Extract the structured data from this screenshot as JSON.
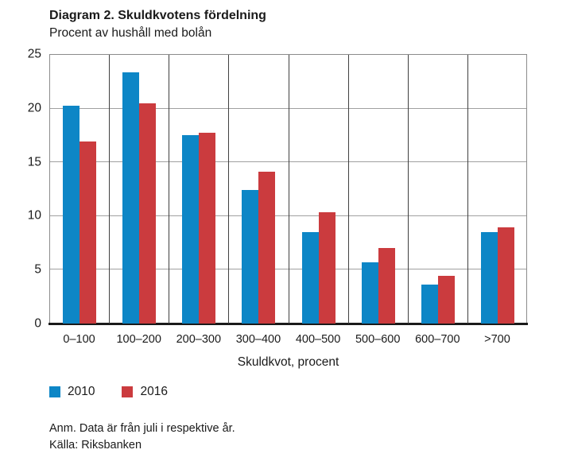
{
  "header": {
    "title": "Diagram 2. Skuldkvotens fördelning",
    "subtitle": "Procent av hushåll med bolån"
  },
  "chart_data": {
    "type": "bar",
    "categories": [
      "0–100",
      "100–200",
      "200–300",
      "300–400",
      "400–500",
      "500–600",
      "600–700",
      ">700"
    ],
    "series": [
      {
        "name": "2010",
        "color": "#0d86c6",
        "values": [
          20.2,
          23.3,
          17.5,
          12.4,
          8.5,
          5.7,
          3.6,
          8.5
        ]
      },
      {
        "name": "2016",
        "color": "#cb3b3e",
        "values": [
          16.9,
          20.4,
          17.7,
          14.1,
          10.3,
          7.0,
          4.4,
          8.9
        ]
      }
    ],
    "title": "Diagram 2. Skuldkvotens fördelning",
    "subtitle": "Procent av hushåll med bolån",
    "xlabel": "Skuldkvot, procent",
    "ylabel": "",
    "ylim": [
      0,
      25
    ],
    "yticks": [
      0,
      5,
      10,
      15,
      20,
      25
    ],
    "grid": true,
    "legend_position": "bottom-left"
  },
  "footnotes": {
    "note": "Anm. Data är från juli i respektive år.",
    "source": "Källa: Riksbanken"
  }
}
